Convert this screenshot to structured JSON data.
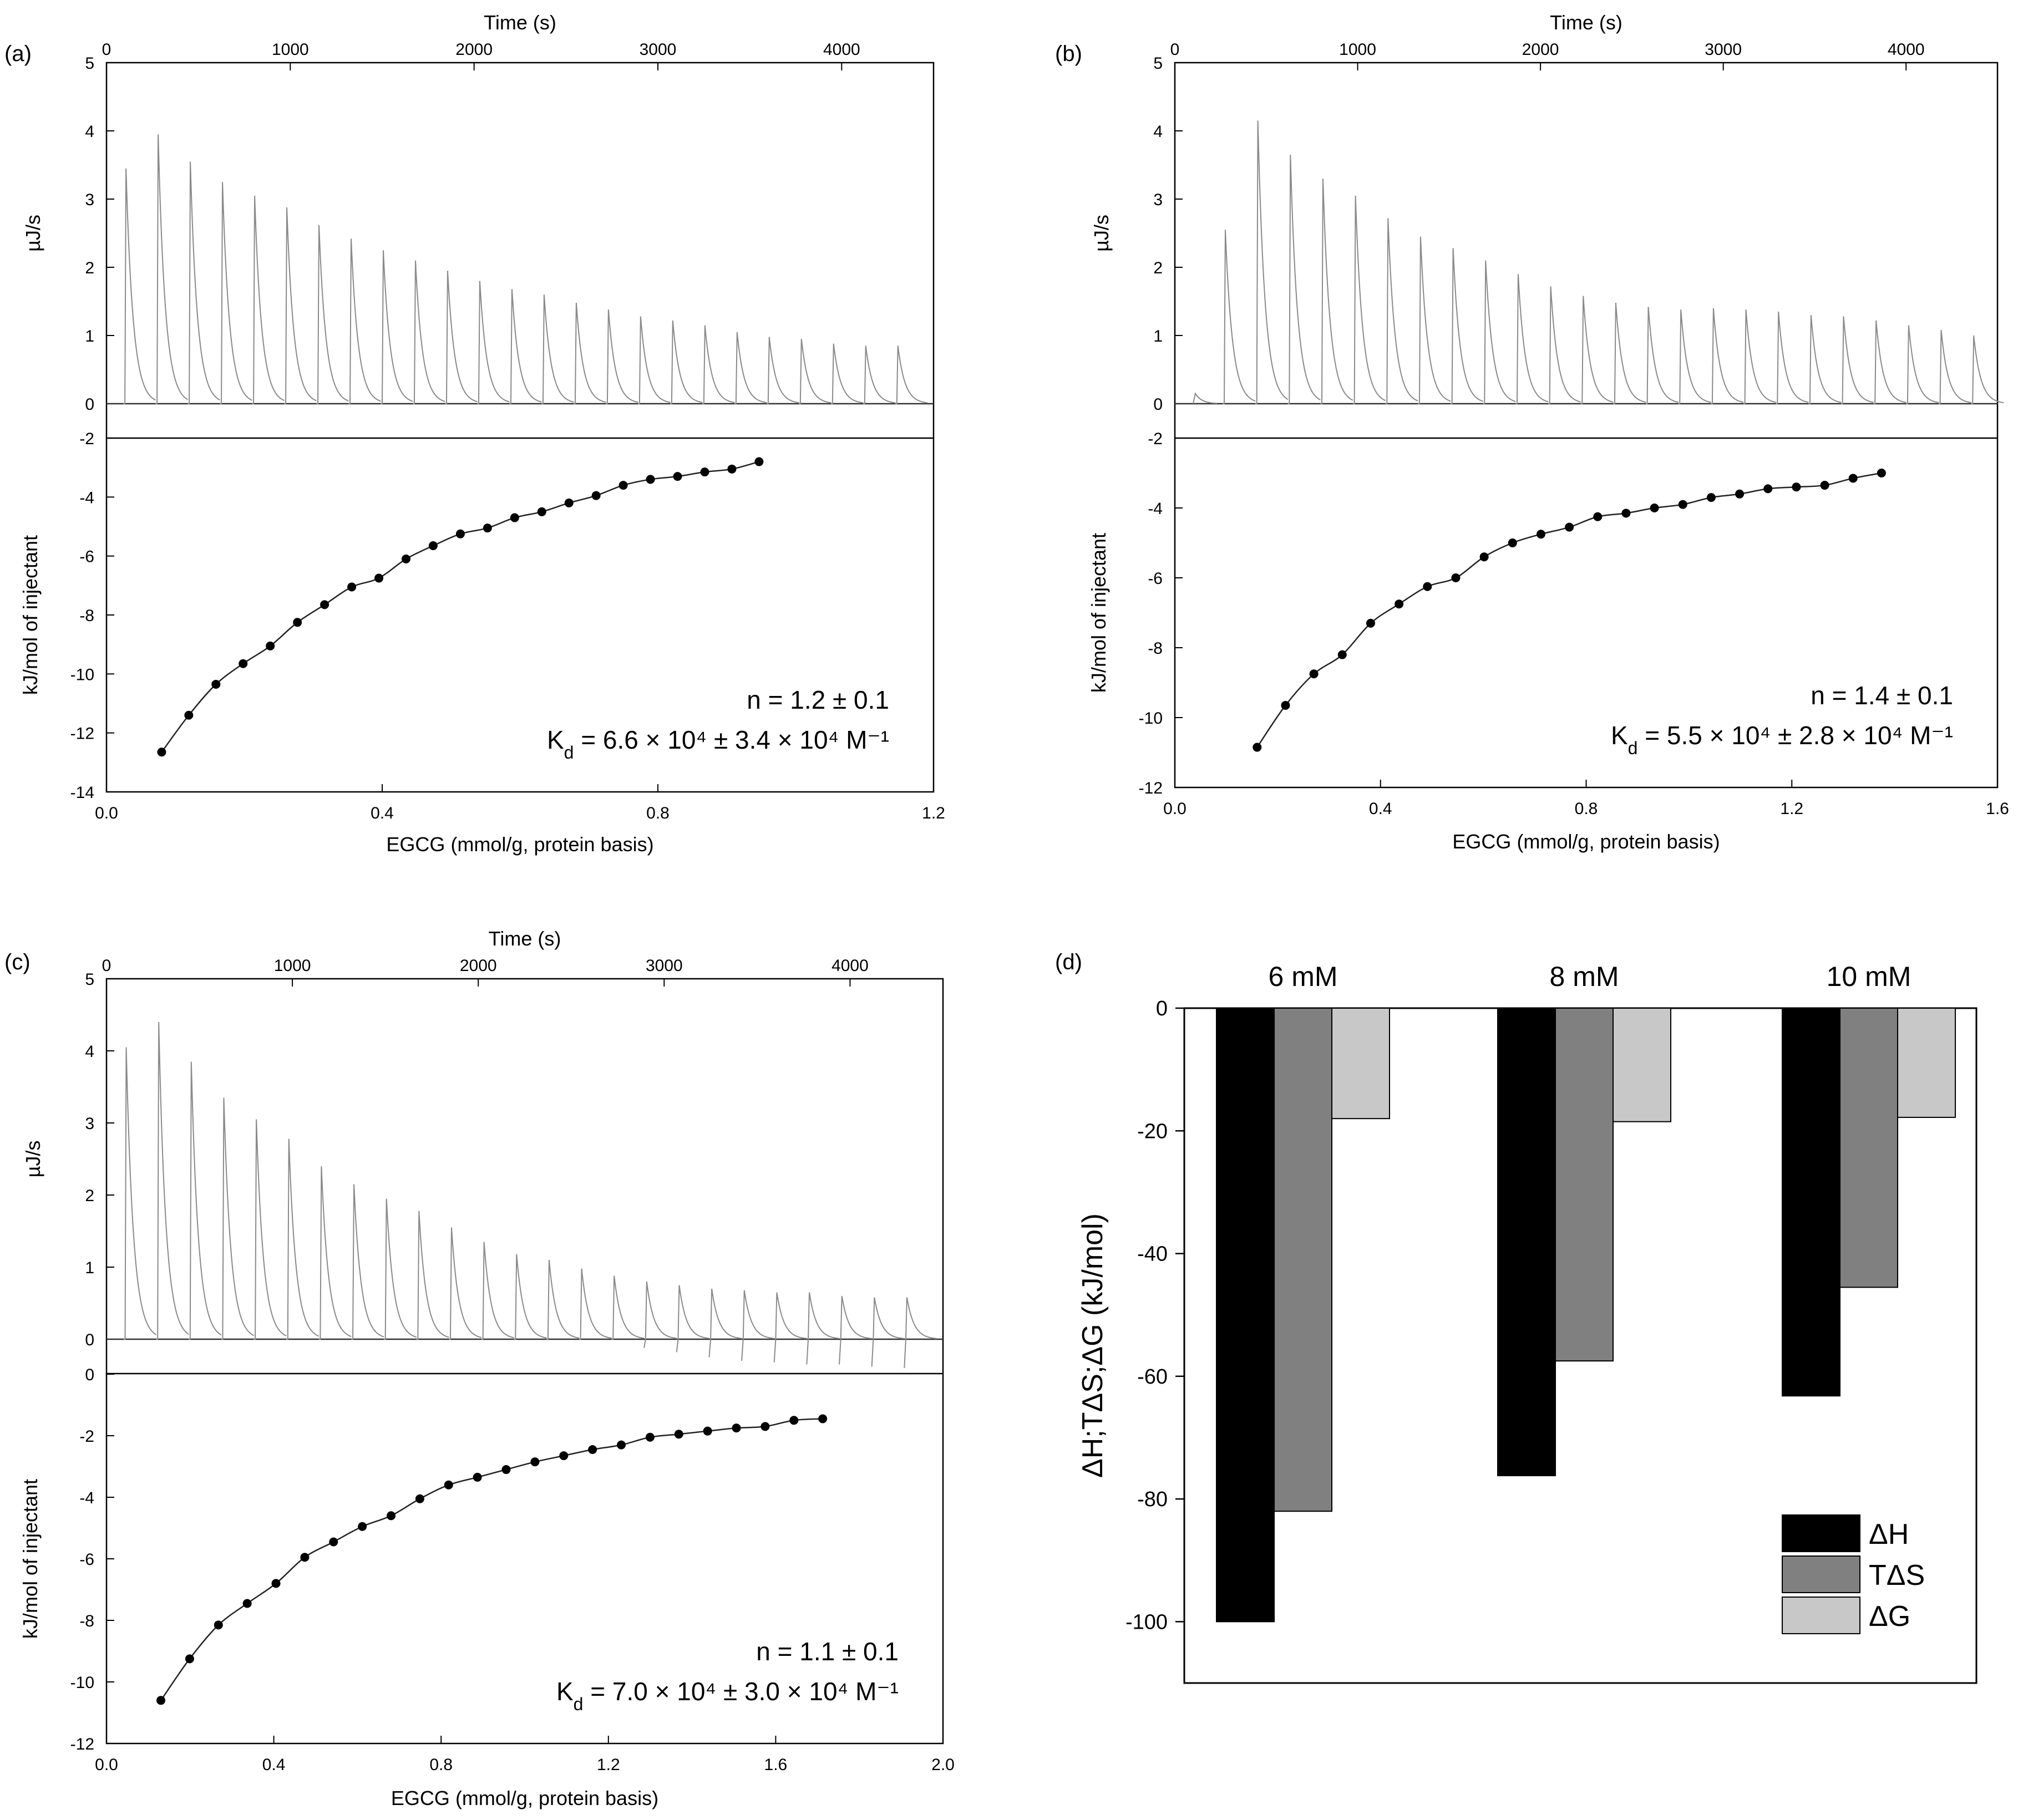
{
  "figure": {
    "panels": [
      {
        "id": "a",
        "label": "(a)",
        "raw": {
          "title": "Time (s)",
          "ylabel": "µJ/s",
          "xlim": [
            0,
            4500
          ],
          "ylim": [
            0,
            5
          ],
          "xticks": [
            0,
            1000,
            2000,
            3000,
            4000
          ],
          "yticks": [
            0,
            1,
            2,
            3,
            4,
            5
          ],
          "first_injection_s": 100,
          "interval_s": 175,
          "peaks": [
            3.45,
            3.95,
            3.55,
            3.25,
            3.05,
            2.88,
            2.62,
            2.42,
            2.25,
            2.1,
            1.95,
            1.8,
            1.68,
            1.6,
            1.48,
            1.38,
            1.28,
            1.22,
            1.15,
            1.05,
            0.98,
            0.95,
            0.88,
            0.85,
            0.85
          ],
          "neg_spikes": []
        },
        "binding": {
          "xlabel": "EGCG (mmol/g, protein basis)",
          "ylabel": "kJ/mol of injectant",
          "xlim": [
            0,
            1.2
          ],
          "ylim": [
            -14,
            -2
          ],
          "xticks": [
            0,
            0.4,
            0.8,
            1.2
          ],
          "xticklabels": [
            "0.0",
            "0.4",
            "0.8",
            "1.2"
          ],
          "yticks": [
            -14,
            -12,
            -10,
            -8,
            -6,
            -4,
            -2
          ],
          "x_start": 0.08,
          "x_step": 0.0394,
          "points": [
            -12.65,
            -11.4,
            -10.35,
            -9.65,
            -9.05,
            -8.25,
            -7.65,
            -7.05,
            -6.75,
            -6.1,
            -5.65,
            -5.25,
            -5.05,
            -4.7,
            -4.5,
            -4.2,
            -3.95,
            -3.6,
            -3.4,
            -3.3,
            -3.15,
            -3.05,
            -2.8
          ]
        },
        "annotation": {
          "n": "n = 1.2 ± 0.1",
          "kd_prefix": "K",
          "kd_sub": "d",
          "kd_rest": " = 6.6 × 10⁴ ± 3.4 × 10⁴ M⁻¹"
        }
      },
      {
        "id": "b",
        "label": "(b)",
        "raw": {
          "title": "Time (s)",
          "ylabel": "µJ/s",
          "xlim": [
            0,
            4500
          ],
          "ylim": [
            0,
            5
          ],
          "xticks": [
            0,
            1000,
            2000,
            3000,
            4000
          ],
          "yticks": [
            0,
            1,
            2,
            3,
            4,
            5
          ],
          "first_injection_s": 270,
          "interval_s": 178,
          "pre_bump": 0.15,
          "peaks": [
            2.55,
            4.15,
            3.65,
            3.3,
            3.05,
            2.72,
            2.45,
            2.28,
            2.1,
            1.9,
            1.72,
            1.58,
            1.48,
            1.42,
            1.38,
            1.4,
            1.38,
            1.35,
            1.3,
            1.28,
            1.22,
            1.15,
            1.08,
            1.0
          ],
          "neg_spikes": []
        },
        "binding": {
          "xlabel": "EGCG (mmol/g, protein basis)",
          "ylabel": "kJ/mol of injectant",
          "xlim": [
            0,
            1.6
          ],
          "ylim": [
            -12,
            -2
          ],
          "xticks": [
            0,
            0.4,
            0.8,
            1.2,
            1.6
          ],
          "xticklabels": [
            "0.0",
            "0.4",
            "0.8",
            "1.2",
            "1.6"
          ],
          "yticks": [
            -12,
            -10,
            -8,
            -6,
            -4,
            -2
          ],
          "x_start": 0.16,
          "x_step": 0.0552,
          "points": [
            -10.85,
            -9.65,
            -8.75,
            -8.2,
            -7.3,
            -6.75,
            -6.25,
            -6.0,
            -5.4,
            -5.0,
            -4.75,
            -4.55,
            -4.25,
            -4.15,
            -4.0,
            -3.9,
            -3.7,
            -3.6,
            -3.45,
            -3.4,
            -3.35,
            -3.15,
            -3.0
          ]
        },
        "annotation": {
          "n": "n = 1.4 ± 0.1",
          "kd_prefix": "K",
          "kd_sub": "d",
          "kd_rest": " = 5.5 × 10⁴ ± 2.8 × 10⁴ M⁻¹"
        }
      },
      {
        "id": "c",
        "label": "(c)",
        "raw": {
          "title": "Time (s)",
          "ylabel": "µJ/s",
          "xlim": [
            0,
            4500
          ],
          "ylim": [
            0,
            5
          ],
          "xticks": [
            0,
            1000,
            2000,
            3000,
            4000
          ],
          "yticks": [
            0,
            1,
            2,
            3,
            4,
            5
          ],
          "first_injection_s": 100,
          "interval_s": 175,
          "peaks": [
            4.05,
            4.4,
            3.85,
            3.35,
            3.05,
            2.78,
            2.4,
            2.15,
            1.95,
            1.78,
            1.55,
            1.35,
            1.18,
            1.1,
            0.98,
            0.88,
            0.8,
            0.75,
            0.7,
            0.68,
            0.65,
            0.65,
            0.6,
            0.58,
            0.58
          ],
          "neg_spikes": [
            0,
            0,
            0,
            0,
            0,
            0,
            0,
            0,
            0,
            0,
            0,
            0,
            0,
            0,
            0,
            0,
            0.12,
            0.18,
            0.25,
            0.3,
            0.32,
            0.35,
            0.35,
            0.38,
            0.4
          ]
        },
        "binding": {
          "xlabel": "EGCG (mmol/g, protein basis)",
          "ylabel": "kJ/mol of injectant",
          "xlim": [
            0,
            2.0
          ],
          "ylim": [
            -12,
            0
          ],
          "xticks": [
            0,
            0.4,
            0.8,
            1.2,
            1.6,
            2.0
          ],
          "xticklabels": [
            "0.0",
            "0.4",
            "0.8",
            "1.2",
            "1.6",
            "2.0"
          ],
          "yticks": [
            -12,
            -10,
            -8,
            -6,
            -4,
            -2,
            0
          ],
          "x_start": 0.13,
          "x_step": 0.0688,
          "points": [
            -10.6,
            -9.25,
            -8.15,
            -7.45,
            -6.8,
            -5.95,
            -5.45,
            -4.95,
            -4.6,
            -4.05,
            -3.6,
            -3.35,
            -3.1,
            -2.85,
            -2.65,
            -2.45,
            -2.3,
            -2.05,
            -1.95,
            -1.85,
            -1.75,
            -1.7,
            -1.5,
            -1.45
          ]
        },
        "annotation": {
          "n": "n = 1.1 ± 0.1",
          "kd_prefix": "K",
          "kd_sub": "d",
          "kd_rest": " = 7.0 × 10⁴ ± 3.0 × 10⁴ M⁻¹"
        }
      },
      {
        "id": "d",
        "label": "(d)"
      }
    ]
  },
  "chart_data": {
    "type": "bar",
    "title": "",
    "categories": [
      "6 mM",
      "8 mM",
      "10 mM"
    ],
    "series": [
      {
        "name": "ΔH",
        "values": [
          -100,
          -76.2,
          -63.2
        ],
        "color": "#000000"
      },
      {
        "name": "TΔS",
        "values": [
          -82,
          -57.5,
          -45.5
        ],
        "color": "#808080"
      },
      {
        "name": "ΔG",
        "values": [
          -18,
          -18.5,
          -17.8
        ],
        "color": "#c8c8c8"
      }
    ],
    "xlabel": "",
    "ylabel": "ΔH;TΔS;ΔG (kJ/mol)",
    "ylim": [
      -110,
      0
    ],
    "yticks": [
      0,
      -20,
      -40,
      -60,
      -80,
      -100
    ],
    "legend": "bottom-right",
    "grid": false
  }
}
